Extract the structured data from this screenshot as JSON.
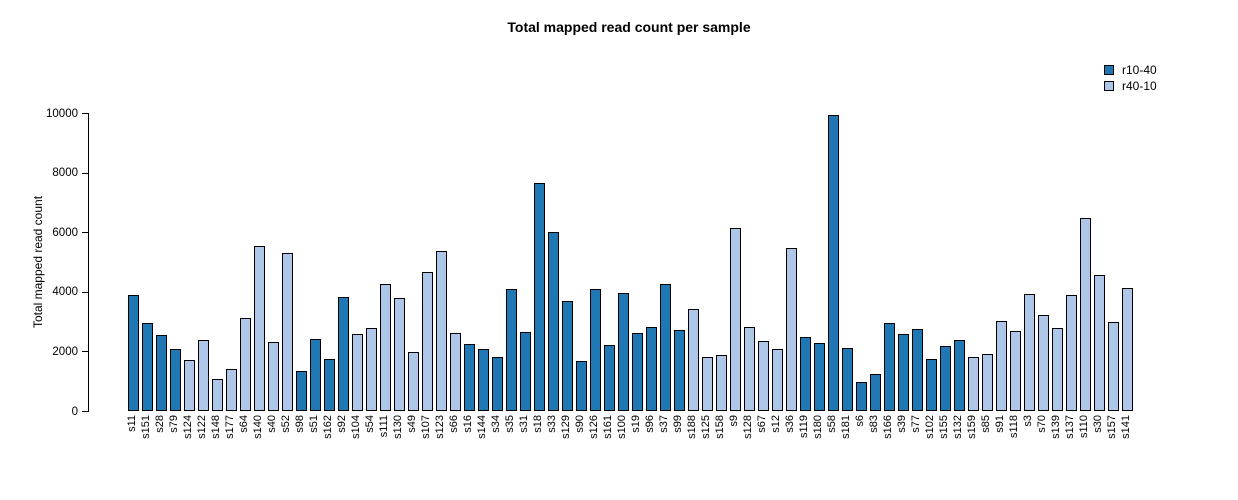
{
  "title": "Total mapped read count per sample",
  "ylabel": "Total mapped read count",
  "legend": {
    "items": [
      {
        "label": "r10-40",
        "color": "#1f77b4"
      },
      {
        "label": "r40-10",
        "color": "#aec7e8"
      }
    ]
  },
  "chart_data": {
    "type": "bar",
    "title": "Total mapped read count per sample",
    "xlabel": "",
    "ylabel": "Total mapped read count",
    "ylim": [
      0,
      10000
    ],
    "yticks": [
      0,
      2000,
      4000,
      6000,
      8000,
      10000
    ],
    "grid": false,
    "legend_position": "top-right",
    "series": [
      {
        "name": "r10-40",
        "color": "#1f77b4"
      },
      {
        "name": "r40-10",
        "color": "#aec7e8"
      }
    ],
    "samples": [
      {
        "label": "s11",
        "group": "r10-40",
        "value": 3880
      },
      {
        "label": "s151",
        "group": "r10-40",
        "value": 2970
      },
      {
        "label": "s28",
        "group": "r10-40",
        "value": 2560
      },
      {
        "label": "s79",
        "group": "r10-40",
        "value": 2090
      },
      {
        "label": "s124",
        "group": "r40-10",
        "value": 1710
      },
      {
        "label": "s122",
        "group": "r40-10",
        "value": 2390
      },
      {
        "label": "s148",
        "group": "r40-10",
        "value": 1060
      },
      {
        "label": "s177",
        "group": "r40-10",
        "value": 1400
      },
      {
        "label": "s64",
        "group": "r40-10",
        "value": 3110
      },
      {
        "label": "s140",
        "group": "r40-10",
        "value": 5550
      },
      {
        "label": "s40",
        "group": "r40-10",
        "value": 2330
      },
      {
        "label": "s52",
        "group": "r40-10",
        "value": 5320
      },
      {
        "label": "s98",
        "group": "r10-40",
        "value": 1340
      },
      {
        "label": "s51",
        "group": "r10-40",
        "value": 2420
      },
      {
        "label": "s162",
        "group": "r10-40",
        "value": 1730
      },
      {
        "label": "s92",
        "group": "r10-40",
        "value": 3830
      },
      {
        "label": "s104",
        "group": "r40-10",
        "value": 2600
      },
      {
        "label": "s54",
        "group": "r40-10",
        "value": 2790
      },
      {
        "label": "s111",
        "group": "r40-10",
        "value": 4260
      },
      {
        "label": "s130",
        "group": "r40-10",
        "value": 3810
      },
      {
        "label": "s49",
        "group": "r40-10",
        "value": 1970
      },
      {
        "label": "s107",
        "group": "r40-10",
        "value": 4650
      },
      {
        "label": "s123",
        "group": "r40-10",
        "value": 5380
      },
      {
        "label": "s66",
        "group": "r40-10",
        "value": 2610
      },
      {
        "label": "s16",
        "group": "r10-40",
        "value": 2250
      },
      {
        "label": "s144",
        "group": "r10-40",
        "value": 2080
      },
      {
        "label": "s34",
        "group": "r10-40",
        "value": 1800
      },
      {
        "label": "s35",
        "group": "r10-40",
        "value": 4080
      },
      {
        "label": "s31",
        "group": "r10-40",
        "value": 2640
      },
      {
        "label": "s18",
        "group": "r10-40",
        "value": 7660
      },
      {
        "label": "s33",
        "group": "r10-40",
        "value": 6010
      },
      {
        "label": "s129",
        "group": "r10-40",
        "value": 3700
      },
      {
        "label": "s90",
        "group": "r10-40",
        "value": 1680
      },
      {
        "label": "s126",
        "group": "r10-40",
        "value": 4100
      },
      {
        "label": "s161",
        "group": "r10-40",
        "value": 2210
      },
      {
        "label": "s100",
        "group": "r10-40",
        "value": 3950
      },
      {
        "label": "s19",
        "group": "r10-40",
        "value": 2620
      },
      {
        "label": "s96",
        "group": "r10-40",
        "value": 2830
      },
      {
        "label": "s37",
        "group": "r10-40",
        "value": 4270
      },
      {
        "label": "s99",
        "group": "r10-40",
        "value": 2710
      },
      {
        "label": "s188",
        "group": "r40-10",
        "value": 3420
      },
      {
        "label": "s125",
        "group": "r40-10",
        "value": 1810
      },
      {
        "label": "s158",
        "group": "r40-10",
        "value": 1890
      },
      {
        "label": "s9",
        "group": "r40-10",
        "value": 6150
      },
      {
        "label": "s128",
        "group": "r40-10",
        "value": 2830
      },
      {
        "label": "s67",
        "group": "r40-10",
        "value": 2350
      },
      {
        "label": "s12",
        "group": "r40-10",
        "value": 2080
      },
      {
        "label": "s36",
        "group": "r40-10",
        "value": 5470
      },
      {
        "label": "s119",
        "group": "r10-40",
        "value": 2470
      },
      {
        "label": "s180",
        "group": "r10-40",
        "value": 2300
      },
      {
        "label": "s58",
        "group": "r10-40",
        "value": 9930
      },
      {
        "label": "s181",
        "group": "r10-40",
        "value": 2120
      },
      {
        "label": "s6",
        "group": "r10-40",
        "value": 990
      },
      {
        "label": "s83",
        "group": "r10-40",
        "value": 1260
      },
      {
        "label": "s166",
        "group": "r10-40",
        "value": 2940
      },
      {
        "label": "s39",
        "group": "r10-40",
        "value": 2600
      },
      {
        "label": "s77",
        "group": "r10-40",
        "value": 2760
      },
      {
        "label": "s102",
        "group": "r10-40",
        "value": 1750
      },
      {
        "label": "s155",
        "group": "r10-40",
        "value": 2170
      },
      {
        "label": "s132",
        "group": "r10-40",
        "value": 2400
      },
      {
        "label": "s159",
        "group": "r40-10",
        "value": 1800
      },
      {
        "label": "s85",
        "group": "r40-10",
        "value": 1910
      },
      {
        "label": "s91",
        "group": "r40-10",
        "value": 3020
      },
      {
        "label": "s118",
        "group": "r40-10",
        "value": 2690
      },
      {
        "label": "s3",
        "group": "r40-10",
        "value": 3920
      },
      {
        "label": "s70",
        "group": "r40-10",
        "value": 3210
      },
      {
        "label": "s139",
        "group": "r40-10",
        "value": 2800
      },
      {
        "label": "s137",
        "group": "r40-10",
        "value": 3900
      },
      {
        "label": "s110",
        "group": "r40-10",
        "value": 6490
      },
      {
        "label": "s30",
        "group": "r40-10",
        "value": 4550
      },
      {
        "label": "s157",
        "group": "r40-10",
        "value": 3000
      },
      {
        "label": "s141",
        "group": "r40-10",
        "value": 4120
      }
    ]
  }
}
